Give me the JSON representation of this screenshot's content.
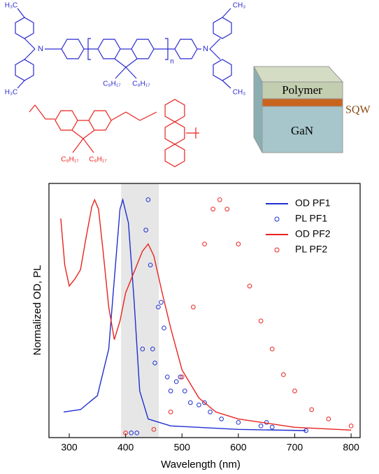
{
  "structures": {
    "polymer1": {
      "labels": [
        "H₃C",
        "N",
        "C₈H₁₇",
        "C₈H₁₇",
        "n",
        "N",
        "CH₃",
        "H₃C",
        "CH₃"
      ]
    },
    "polymer2": {
      "labels": [
        "C₈H₁₇",
        "C₈H₁₇"
      ]
    }
  },
  "schematic": {
    "layers": [
      "Polymer",
      "SQW",
      "GaN"
    ]
  },
  "chart_data": {
    "type": "line",
    "x_label": "Wavelength (nm)",
    "y_label": "Normalized OD, PL",
    "xlim": [
      264,
      816
    ],
    "ylim": [
      -0.02,
      1.07
    ],
    "xticks": [
      300,
      400,
      500,
      600,
      700,
      800
    ],
    "highlight": [
      392,
      459
    ],
    "highlight_color": "#e6e6e6",
    "legend": "upper right",
    "series": [
      {
        "name": "OD PF1",
        "color": "#1f2fcf",
        "style": "line",
        "x": [
          290,
          320,
          350,
          370,
          380,
          390,
          395,
          405,
          415,
          425,
          440,
          480,
          600,
          720
        ],
        "values": [
          0.09,
          0.1,
          0.16,
          0.36,
          0.66,
          0.96,
          1.0,
          0.9,
          0.57,
          0.18,
          0.06,
          0.03,
          0.015,
          0.01
        ]
      },
      {
        "name": "PL PF1",
        "color": "#1f2fcf",
        "style": "markers",
        "x": [
          410,
          420,
          430,
          436,
          440,
          444,
          448,
          452,
          458,
          463,
          468,
          474,
          480,
          490,
          497,
          505,
          515,
          530,
          540,
          550,
          570,
          600,
          640,
          650,
          660,
          720
        ],
        "values": [
          0.0,
          0.0,
          0.36,
          0.87,
          1.0,
          0.72,
          0.36,
          0.3,
          0.54,
          0.56,
          0.45,
          0.24,
          0.18,
          0.22,
          0.24,
          0.18,
          0.13,
          0.12,
          0.13,
          0.09,
          0.06,
          0.045,
          0.03,
          0.045,
          0.025,
          0.01
        ]
      },
      {
        "name": "OD PF2",
        "color": "#e8231f",
        "style": "line",
        "x": [
          285,
          292,
          300,
          310,
          320,
          330,
          340,
          345,
          352,
          360,
          370,
          380,
          390,
          400,
          415,
          430,
          440,
          450,
          465,
          480,
          500,
          530,
          560,
          600,
          700,
          800
        ],
        "values": [
          0.92,
          0.72,
          0.63,
          0.66,
          0.7,
          0.84,
          0.97,
          1.0,
          0.96,
          0.78,
          0.54,
          0.4,
          0.48,
          0.6,
          0.69,
          0.78,
          0.81,
          0.76,
          0.6,
          0.45,
          0.27,
          0.15,
          0.09,
          0.06,
          0.024,
          0.012
        ]
      },
      {
        "name": "PL PF2",
        "color": "#e8231f",
        "style": "markers",
        "x": [
          400,
          450,
          480,
          500,
          520,
          540,
          555,
          567,
          580,
          600,
          620,
          640,
          660,
          680,
          700,
          730,
          760,
          800
        ],
        "values": [
          0.0,
          0.015,
          0.09,
          0.24,
          0.54,
          0.81,
          0.96,
          1.0,
          0.96,
          0.81,
          0.63,
          0.48,
          0.36,
          0.25,
          0.18,
          0.1,
          0.06,
          0.03
        ]
      }
    ]
  }
}
